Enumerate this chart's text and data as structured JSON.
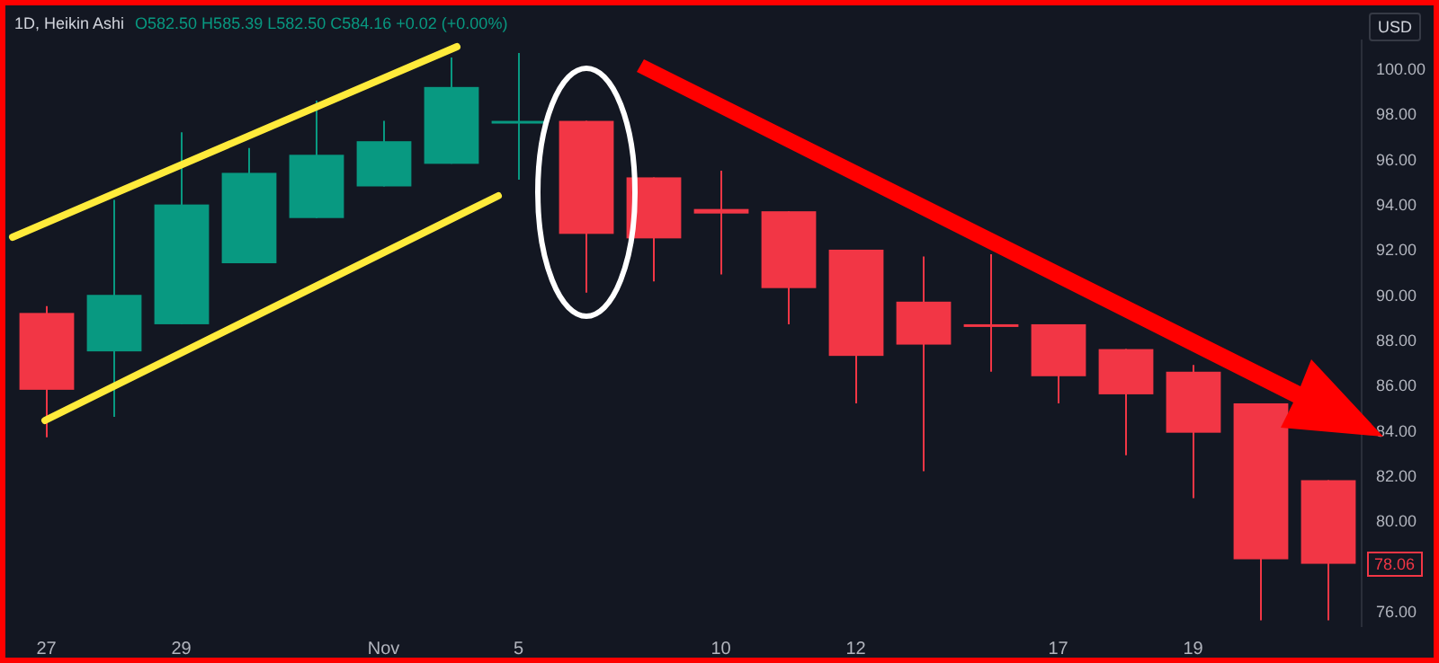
{
  "chart_data": {
    "type": "candlestick",
    "title": "1D, Heikin Ashi",
    "subtitle": "O582.50 H585.39 L582.50 C584.16 +0.02 (+0.00%)",
    "categories": [
      "27",
      null,
      "29",
      null,
      null,
      "Nov",
      null,
      "5",
      null,
      null,
      "10",
      null,
      "12",
      null,
      null,
      "17",
      null,
      "19",
      null,
      null
    ],
    "ohlc": [
      [
        89.2,
        89.5,
        83.7,
        85.8
      ],
      [
        87.5,
        94.2,
        84.6,
        90.0
      ],
      [
        88.7,
        97.2,
        88.7,
        94.0
      ],
      [
        91.4,
        96.5,
        91.4,
        95.4
      ],
      [
        93.4,
        98.6,
        93.4,
        96.2
      ],
      [
        94.8,
        97.7,
        94.8,
        96.8
      ],
      [
        95.8,
        100.5,
        95.8,
        99.2
      ],
      [
        97.6,
        100.7,
        95.1,
        97.7
      ],
      [
        97.7,
        97.7,
        90.1,
        92.7
      ],
      [
        95.2,
        95.2,
        90.6,
        92.5
      ],
      [
        93.8,
        95.5,
        90.9,
        93.6
      ],
      [
        93.7,
        93.7,
        88.7,
        90.3
      ],
      [
        92.0,
        92.0,
        85.2,
        87.3
      ],
      [
        89.7,
        91.7,
        82.2,
        87.8
      ],
      [
        88.7,
        91.8,
        86.6,
        88.6
      ],
      [
        88.7,
        88.7,
        85.2,
        86.4
      ],
      [
        87.6,
        87.6,
        82.9,
        85.6
      ],
      [
        86.6,
        86.9,
        81.0,
        83.9
      ],
      [
        85.2,
        85.2,
        75.6,
        78.3
      ],
      [
        81.8,
        81.8,
        75.6,
        78.1
      ]
    ],
    "colors": [
      "#f23645",
      "#089981",
      "#089981",
      "#089981",
      "#089981",
      "#089981",
      "#089981",
      "#089981",
      "#f23645",
      "#f23645",
      "#f23645",
      "#f23645",
      "#f23645",
      "#f23645",
      "#f23645",
      "#f23645",
      "#f23645",
      "#f23645",
      "#f23645",
      "#f23645"
    ],
    "ylim": [
      75.3,
      101.3
    ],
    "yticks": [
      {
        "value": 76,
        "label": "76.00"
      },
      {
        "value": 80,
        "label": "80.00"
      },
      {
        "value": 82,
        "label": "82.00"
      },
      {
        "value": 84,
        "label": "84.00"
      },
      {
        "value": 86,
        "label": "86.00"
      },
      {
        "value": 88,
        "label": "88.00"
      },
      {
        "value": 90,
        "label": "90.00"
      },
      {
        "value": 92,
        "label": "92.00"
      },
      {
        "value": 94,
        "label": "94.00"
      },
      {
        "value": 96,
        "label": "96.00"
      },
      {
        "value": 98,
        "label": "98.00"
      },
      {
        "value": 100,
        "label": "100.00"
      }
    ],
    "annotations": [
      "USD",
      {
        "text": "78.06",
        "y": 78.06
      }
    ],
    "tick_labels": true
  }
}
